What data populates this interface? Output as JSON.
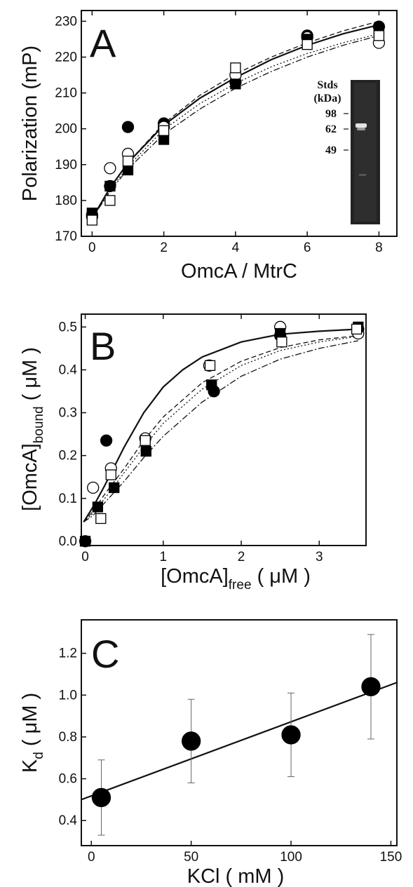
{
  "chart_data": [
    {
      "type": "scatter",
      "panel_label": "A",
      "xlabel": "OmcA / MtrC",
      "ylabel": "Polarization (mP)",
      "xlim": [
        -0.3,
        8.5
      ],
      "ylim": [
        170,
        233
      ],
      "xticks": [
        0,
        2,
        4,
        6,
        8
      ],
      "yticks": [
        170,
        180,
        190,
        200,
        210,
        220,
        230
      ],
      "grid": false,
      "series": [
        {
          "marker": "filled-circle",
          "x": [
            0,
            0.5,
            1,
            2,
            4,
            6,
            8
          ],
          "y": [
            176,
            184,
            200.5,
            201.5,
            213,
            226,
            228.5
          ]
        },
        {
          "marker": "open-circle",
          "x": [
            0,
            0.5,
            1,
            2,
            4,
            6,
            8
          ],
          "y": [
            175.5,
            189,
            193,
            200.5,
            215,
            225.5,
            224
          ]
        },
        {
          "marker": "filled-square",
          "x": [
            0,
            0.5,
            1,
            2,
            4,
            6,
            8
          ],
          "y": [
            176.5,
            184,
            188.5,
            197,
            212.5,
            225,
            227
          ]
        },
        {
          "marker": "open-square",
          "x": [
            0,
            0.5,
            1,
            2,
            4,
            6,
            8
          ],
          "y": [
            174.5,
            180,
            191,
            199.5,
            217,
            223.5,
            226
          ]
        }
      ],
      "fits": [
        {
          "style": "solid",
          "x": [
            0,
            0.5,
            1,
            2,
            3,
            4,
            5,
            6,
            7,
            8
          ],
          "y": [
            175,
            183.5,
            190.5,
            201,
            208.5,
            214.3,
            219.3,
            223.3,
            226.5,
            229
          ]
        },
        {
          "style": "dashed",
          "x": [
            0,
            0.5,
            1,
            2,
            3,
            4,
            5,
            6,
            7,
            8
          ],
          "y": [
            175,
            183.3,
            190.5,
            201.5,
            209.3,
            215.3,
            220,
            224,
            227.3,
            230
          ]
        },
        {
          "style": "dotted",
          "x": [
            0,
            0.5,
            1,
            2,
            3,
            4,
            5,
            6,
            7,
            8
          ],
          "y": [
            175,
            182.8,
            189.5,
            199.8,
            207,
            212.7,
            217.3,
            221,
            224,
            226.5
          ]
        },
        {
          "style": "dashdot",
          "x": [
            0,
            0.5,
            1,
            2,
            3,
            4,
            5,
            6,
            7,
            8
          ],
          "y": [
            175,
            182.5,
            188.8,
            198.5,
            205.5,
            211.3,
            216,
            220,
            223.3,
            226
          ]
        }
      ],
      "inset": {
        "title": "Stds",
        "unit": "(kDa)",
        "markers": [
          "98",
          "62",
          "49"
        ]
      }
    },
    {
      "type": "scatter",
      "panel_label": "B",
      "xlabel_main": "[OmcA]",
      "xlabel_sub": "free",
      "xlabel_unit": " ( μM )",
      "ylabel_main": "[OmcA]",
      "ylabel_sub": "bound",
      "ylabel_unit": " ( μM )",
      "xlim": [
        -0.05,
        3.6
      ],
      "ylim": [
        -0.01,
        0.53
      ],
      "xticks": [
        0,
        1,
        2,
        3
      ],
      "yticks": [
        0.0,
        0.1,
        0.2,
        0.3,
        0.4,
        0.5
      ],
      "grid": false,
      "series": [
        {
          "marker": "filled-circle",
          "x": [
            0,
            0.27,
            1.65,
            2.5,
            3.5
          ],
          "y": [
            0,
            0.235,
            0.35,
            0.48,
            0.495
          ]
        },
        {
          "marker": "open-circle",
          "x": [
            0.1,
            0.33,
            0.77,
            1.59,
            2.5,
            3.5
          ],
          "y": [
            0.125,
            0.17,
            0.24,
            0.41,
            0.5,
            0.485
          ]
        },
        {
          "marker": "filled-square",
          "x": [
            0,
            0.16,
            0.37,
            0.78,
            1.62,
            2.5,
            3.5
          ],
          "y": [
            0,
            0.08,
            0.125,
            0.21,
            0.365,
            0.485,
            0.5
          ]
        },
        {
          "marker": "open-square",
          "x": [
            0.2,
            0.33,
            0.77,
            1.6,
            2.52,
            3.48
          ],
          "y": [
            0.053,
            0.155,
            0.235,
            0.41,
            0.465,
            0.495
          ]
        }
      ],
      "fits": [
        {
          "style": "solid",
          "x": [
            -0.02,
            0.1,
            0.25,
            0.5,
            0.75,
            1,
            1.25,
            1.5,
            2,
            2.5,
            3,
            3.5
          ],
          "y": [
            0.045,
            0.08,
            0.13,
            0.22,
            0.3,
            0.36,
            0.4,
            0.43,
            0.465,
            0.483,
            0.49,
            0.495
          ]
        },
        {
          "style": "dashed",
          "x": [
            -0.02,
            0.1,
            0.25,
            0.5,
            0.75,
            1,
            1.5,
            2,
            2.5,
            3,
            3.5
          ],
          "y": [
            0.045,
            0.07,
            0.11,
            0.17,
            0.235,
            0.29,
            0.37,
            0.42,
            0.452,
            0.47,
            0.48
          ]
        },
        {
          "style": "dotted",
          "x": [
            -0.02,
            0.1,
            0.25,
            0.5,
            0.75,
            1,
            1.5,
            2,
            2.5,
            3,
            3.5
          ],
          "y": [
            0.045,
            0.065,
            0.1,
            0.16,
            0.22,
            0.275,
            0.355,
            0.41,
            0.445,
            0.465,
            0.478
          ]
        },
        {
          "style": "dashdot",
          "x": [
            -0.02,
            0.1,
            0.25,
            0.5,
            0.75,
            1,
            1.5,
            2,
            2.5,
            3,
            3.5
          ],
          "y": [
            0.045,
            0.06,
            0.09,
            0.14,
            0.195,
            0.245,
            0.325,
            0.385,
            0.425,
            0.45,
            0.468
          ]
        }
      ]
    },
    {
      "type": "scatter",
      "panel_label": "C",
      "xlabel": "KCl ( mM )",
      "ylabel_main": "K",
      "ylabel_sub": "d",
      "ylabel_unit": " ( μM )",
      "xlim": [
        -5,
        153
      ],
      "ylim": [
        0.28,
        1.36
      ],
      "xticks": [
        0,
        50,
        100,
        150
      ],
      "yticks": [
        0.4,
        0.6,
        0.8,
        1.0,
        1.2
      ],
      "grid": false,
      "series": [
        {
          "marker": "filled-circle",
          "x": [
            5,
            50,
            100,
            140
          ],
          "y": [
            0.51,
            0.78,
            0.81,
            1.04
          ],
          "yerr": [
            0.18,
            0.2,
            0.2,
            0.25
          ]
        }
      ],
      "fit": {
        "style": "solid",
        "x": [
          -5,
          153
        ],
        "y": [
          0.5,
          1.06
        ]
      }
    }
  ]
}
